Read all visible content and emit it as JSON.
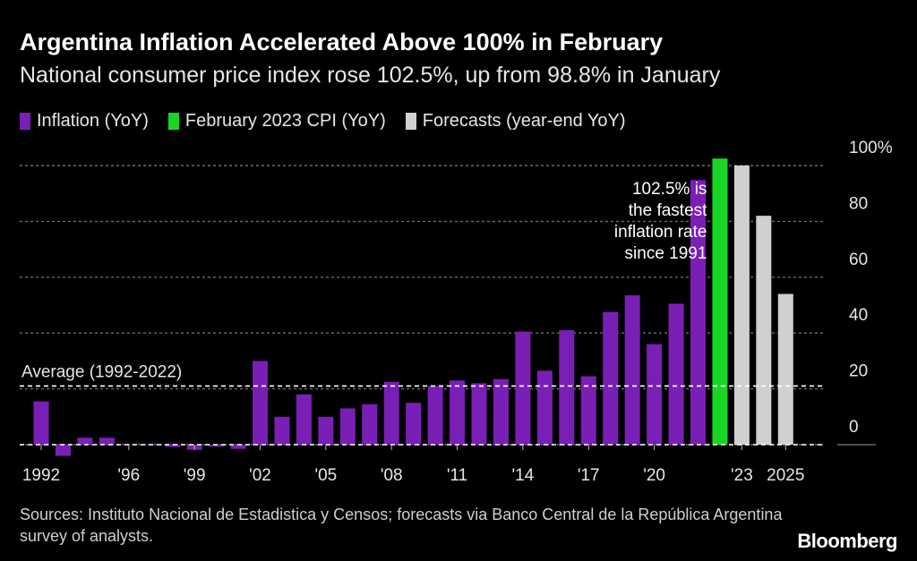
{
  "title": "Argentina Inflation Accelerated Above 100% in February",
  "subtitle": "National consumer price index rose 102.5%, up from 98.8% in January",
  "legend": [
    {
      "label": "Inflation (YoY)",
      "color": "#7a1fb5"
    },
    {
      "label": "February 2023 CPI (YoY)",
      "color": "#18d626"
    },
    {
      "label": "Forecasts (year-end YoY)",
      "color": "#d0d0d0"
    }
  ],
  "source": "Sources: Instituto Nacional de Estadistica y Censos; forecasts via Banco Central de la República Argentina survey of analysts.",
  "brand": "Bloomberg",
  "chart_data": {
    "type": "bar",
    "categories": [
      "1992",
      "1993",
      "1994",
      "1995",
      "1996",
      "1997",
      "1998",
      "1999",
      "2000",
      "2001",
      "2002",
      "2003",
      "2004",
      "2005",
      "2006",
      "2007",
      "2008",
      "2009",
      "2010",
      "2011",
      "2012",
      "2013",
      "2014",
      "2015",
      "2016",
      "2017",
      "2018",
      "2019",
      "2020",
      "2021",
      "2022",
      "Feb 2023",
      "2023",
      "2024",
      "2025"
    ],
    "values": [
      15.5,
      -4,
      2.5,
      2.5,
      0,
      0,
      -0.8,
      -1.8,
      -0.7,
      -1.5,
      30,
      10,
      18,
      10,
      13,
      14.5,
      22.5,
      15,
      21,
      23,
      22,
      23.5,
      40.5,
      26.5,
      41,
      24.5,
      47.5,
      53.5,
      36,
      50.5,
      94.8,
      102.5,
      100,
      82,
      54
    ],
    "kinds": [
      "inflation",
      "inflation",
      "inflation",
      "inflation",
      "inflation",
      "inflation",
      "inflation",
      "inflation",
      "inflation",
      "inflation",
      "inflation",
      "inflation",
      "inflation",
      "inflation",
      "inflation",
      "inflation",
      "inflation",
      "inflation",
      "inflation",
      "inflation",
      "inflation",
      "inflation",
      "inflation",
      "inflation",
      "inflation",
      "inflation",
      "inflation",
      "inflation",
      "inflation",
      "inflation",
      "inflation",
      "cpi",
      "forecast",
      "forecast",
      "forecast"
    ],
    "x_tick_labels": [
      {
        "label": "1992",
        "category": "1992"
      },
      {
        "label": "'96",
        "category": "1996"
      },
      {
        "label": "'99",
        "category": "1999"
      },
      {
        "label": "'02",
        "category": "2002"
      },
      {
        "label": "'05",
        "category": "2005"
      },
      {
        "label": "'08",
        "category": "2008"
      },
      {
        "label": "'11",
        "category": "2011"
      },
      {
        "label": "'14",
        "category": "2014"
      },
      {
        "label": "'17",
        "category": "2017"
      },
      {
        "label": "'20",
        "category": "2020"
      },
      {
        "label": "'23",
        "category": "2023"
      },
      {
        "label": "2025",
        "category": "2025"
      }
    ],
    "y_ticks": [
      0,
      20,
      40,
      60,
      80,
      100
    ],
    "y_tick_labels": [
      "0",
      "20",
      "40",
      "60",
      "80",
      "100%"
    ],
    "ylim": [
      -4,
      100
    ],
    "grid": true,
    "y_axis_side": "right",
    "average": {
      "label": "Average (1992-2022)",
      "value": 21
    },
    "annotation": [
      "102.5% is",
      "the fastest",
      "inflation rate",
      "since 1991"
    ]
  }
}
